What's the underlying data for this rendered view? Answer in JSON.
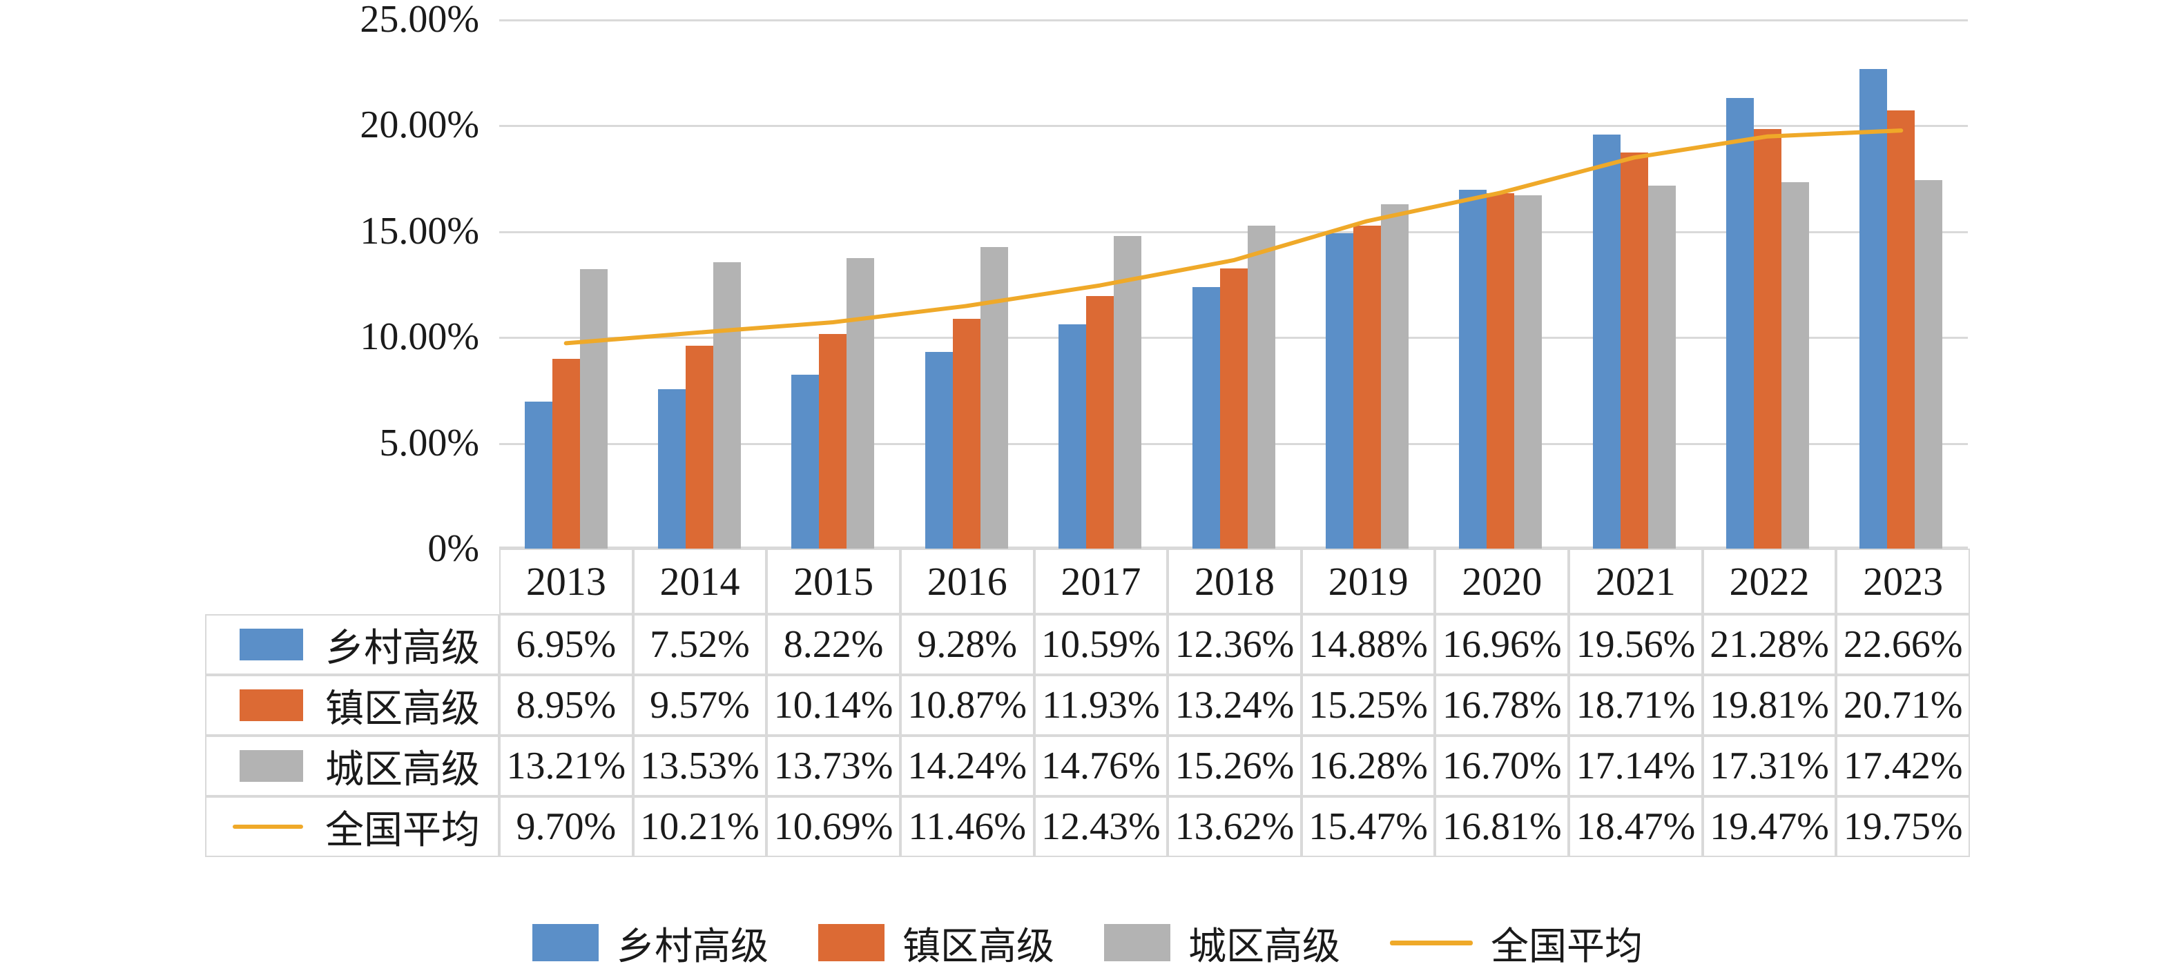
{
  "chart_data": {
    "type": "bar",
    "subtype": "clustered-bars-with-line-overlay",
    "title": "",
    "xlabel": "",
    "ylabel": "",
    "categories": [
      "2013",
      "2014",
      "2015",
      "2016",
      "2017",
      "2018",
      "2019",
      "2020",
      "2021",
      "2022",
      "2023"
    ],
    "series": [
      {
        "name": "乡村高级",
        "type": "bar",
        "color": "#5B8FC8",
        "values": [
          6.95,
          7.52,
          8.22,
          9.28,
          10.59,
          12.36,
          14.88,
          16.96,
          19.56,
          21.28,
          22.66
        ]
      },
      {
        "name": "镇区高级",
        "type": "bar",
        "color": "#DC6A34",
        "values": [
          8.95,
          9.57,
          10.14,
          10.87,
          11.93,
          13.24,
          15.25,
          16.78,
          18.71,
          19.81,
          20.71
        ]
      },
      {
        "name": "城区高级",
        "type": "bar",
        "color": "#B3B3B3",
        "values": [
          13.21,
          13.53,
          13.73,
          14.24,
          14.76,
          15.26,
          16.28,
          16.7,
          17.14,
          17.31,
          17.42
        ]
      },
      {
        "name": "全国平均",
        "type": "line",
        "color": "#EFA929",
        "values": [
          9.7,
          10.21,
          10.69,
          11.46,
          12.43,
          13.62,
          15.47,
          16.81,
          18.47,
          19.47,
          19.75
        ]
      }
    ],
    "value_suffix": "%",
    "value_decimals": 2,
    "y_ticks": [
      "25.00%",
      "20.00%",
      "15.00%",
      "10.00%",
      "5.00%",
      "0%"
    ],
    "ylim": [
      0,
      25
    ],
    "grid": true,
    "gridline_color": "#D9D9D9",
    "legend_position": "bottom",
    "table_below_axis": true
  }
}
